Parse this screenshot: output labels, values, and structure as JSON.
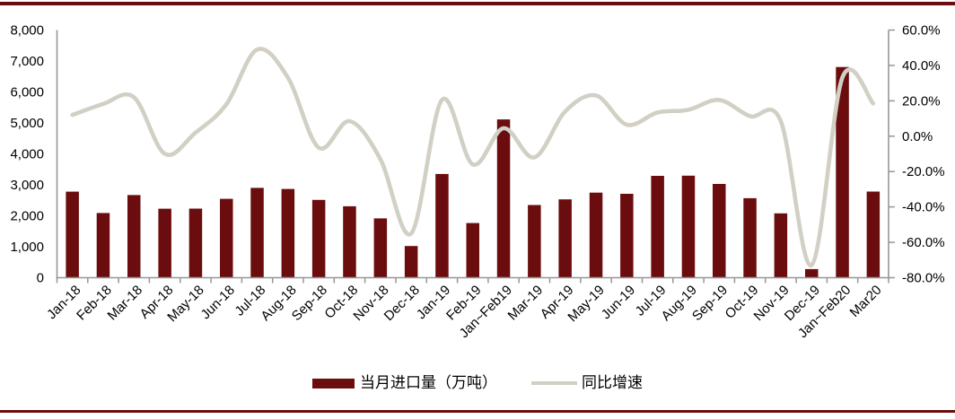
{
  "colors": {
    "bar": "#6B0D0E",
    "line": "#D2D0C5",
    "axis": "#969696",
    "divider": "#6B0D0E",
    "text": "#000000"
  },
  "legend": {
    "bar_label": "当月进口量（万吨）",
    "line_label": "同比增速"
  },
  "chart_data": {
    "type": "combo",
    "title": "",
    "grid": false,
    "legend_position": "bottom",
    "line_smooth": true,
    "categories": [
      "Jan-18",
      "Feb-18",
      "Mar-18",
      "Apr-18",
      "May-18",
      "Jun-18",
      "Jul-18",
      "Aug-18",
      "Sep-18",
      "Oct-18",
      "Nov-18",
      "Dec-18",
      "Jan-19",
      "Feb-19",
      "Jan~Feb19",
      "Mar-19",
      "Apr-19",
      "May-19",
      "Jun-19",
      "Jul-19",
      "Aug-19",
      "Sep-19",
      "Oct-19",
      "Nov-19",
      "Dec-19",
      "Jan~Feb20",
      "Mar20"
    ],
    "series": [
      {
        "name": "当月进口量（万吨）",
        "type": "bar",
        "axis": "left",
        "values": [
          2781,
          2090,
          2670,
          2228,
          2233,
          2547,
          2901,
          2868,
          2514,
          2308,
          1915,
          1023,
          3350,
          1764,
          5114,
          2348,
          2530,
          2747,
          2710,
          3289,
          3295,
          3029,
          2569,
          2078,
          277,
          6806,
          2783
        ]
      },
      {
        "name": "同比增速",
        "type": "line",
        "axis": "right",
        "values": [
          12.0,
          18.2,
          22.0,
          -10.0,
          2.0,
          18.0,
          49.0,
          33.0,
          -6.5,
          8.5,
          -13.0,
          -55.0,
          20.5,
          -16.0,
          4.5,
          -12.0,
          14.0,
          23.0,
          6.5,
          13.4,
          14.9,
          20.5,
          11.3,
          8.5,
          -72.9,
          33.1,
          18.5
        ]
      }
    ],
    "left_axis": {
      "min": 0,
      "max": 8000,
      "step": 1000,
      "tick_labels": [
        "8,000",
        "7,000",
        "6,000",
        "5,000",
        "4,000",
        "3,000",
        "2,000",
        "1,000",
        "0"
      ],
      "tick_values": [
        8000,
        7000,
        6000,
        5000,
        4000,
        3000,
        2000,
        1000,
        0
      ]
    },
    "right_axis": {
      "min": -80,
      "max": 60,
      "step": 20,
      "tick_labels": [
        "60.0%",
        "40.0%",
        "20.0%",
        "0.0%",
        "-20.0%",
        "-40.0%",
        "-60.0%",
        "-80.0%"
      ],
      "tick_values": [
        60,
        40,
        20,
        0,
        -20,
        -40,
        -60,
        -80
      ]
    }
  }
}
